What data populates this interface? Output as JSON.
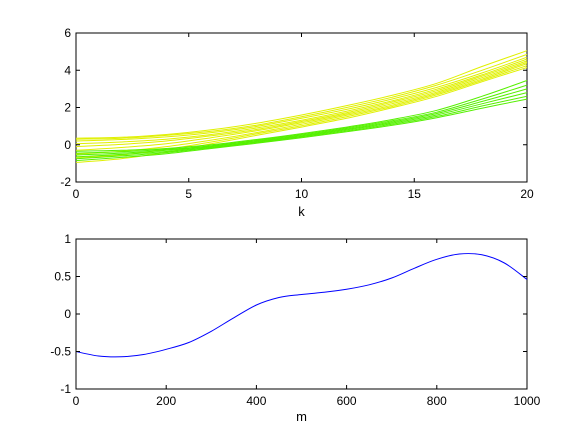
{
  "chart_data": [
    {
      "type": "line",
      "xlabel": "k",
      "ylabel": "",
      "xlim": [
        0,
        20
      ],
      "ylim": [
        -2,
        6
      ],
      "x_ticks": [
        "0",
        "5",
        "10",
        "15",
        "20"
      ],
      "y_ticks": [
        "-2",
        "0",
        "2",
        "4",
        "6"
      ],
      "x": [
        0,
        2,
        4,
        6,
        8,
        10,
        12,
        14,
        16,
        18,
        20
      ],
      "series": [
        {
          "group": "yellow",
          "color": "#e0f000",
          "values": [
            0.35,
            0.4,
            0.55,
            0.8,
            1.15,
            1.6,
            2.1,
            2.65,
            3.3,
            4.2,
            5.05
          ]
        },
        {
          "group": "yellow",
          "color": "#e0f000",
          "values": [
            0.3,
            0.35,
            0.5,
            0.72,
            1.05,
            1.5,
            2.0,
            2.55,
            3.2,
            4.0,
            4.85
          ]
        },
        {
          "group": "yellow",
          "color": "#e0f000",
          "values": [
            0.2,
            0.28,
            0.42,
            0.65,
            0.98,
            1.42,
            1.9,
            2.45,
            3.08,
            3.85,
            4.7
          ]
        },
        {
          "group": "yellow",
          "color": "#e0f000",
          "values": [
            0.05,
            0.15,
            0.3,
            0.55,
            0.9,
            1.32,
            1.8,
            2.35,
            2.98,
            3.75,
            4.6
          ]
        },
        {
          "group": "yellow",
          "color": "#e0f000",
          "values": [
            -0.1,
            0.02,
            0.2,
            0.48,
            0.82,
            1.25,
            1.72,
            2.28,
            2.9,
            3.68,
            4.5
          ]
        },
        {
          "group": "yellow",
          "color": "#e0f000",
          "values": [
            -0.3,
            -0.15,
            0.05,
            0.38,
            0.75,
            1.18,
            1.65,
            2.2,
            2.82,
            3.6,
            4.42
          ]
        },
        {
          "group": "yellow",
          "color": "#e0f000",
          "values": [
            -0.5,
            -0.35,
            -0.1,
            0.25,
            0.65,
            1.1,
            1.58,
            2.12,
            2.75,
            3.52,
            4.35
          ]
        },
        {
          "group": "yellow",
          "color": "#e0f000",
          "values": [
            -0.7,
            -0.55,
            -0.25,
            0.15,
            0.58,
            1.02,
            1.5,
            2.05,
            2.68,
            3.45,
            4.25
          ]
        },
        {
          "group": "yellow",
          "color": "#e0f000",
          "values": [
            -0.95,
            -0.75,
            -0.4,
            0.05,
            0.5,
            0.95,
            1.42,
            1.98,
            2.6,
            3.38,
            4.15
          ]
        },
        {
          "group": "green",
          "color": "#55f000",
          "values": [
            -0.35,
            -0.3,
            -0.2,
            0.0,
            0.28,
            0.6,
            0.95,
            1.35,
            1.85,
            2.6,
            3.45
          ]
        },
        {
          "group": "green",
          "color": "#55f000",
          "values": [
            -0.45,
            -0.38,
            -0.25,
            -0.05,
            0.24,
            0.55,
            0.9,
            1.28,
            1.75,
            2.45,
            3.2
          ]
        },
        {
          "group": "green",
          "color": "#55f000",
          "values": [
            -0.55,
            -0.45,
            -0.3,
            -0.08,
            0.2,
            0.5,
            0.85,
            1.22,
            1.68,
            2.32,
            3.0
          ]
        },
        {
          "group": "green",
          "color": "#55f000",
          "values": [
            -0.65,
            -0.52,
            -0.36,
            -0.12,
            0.16,
            0.46,
            0.8,
            1.16,
            1.6,
            2.2,
            2.8
          ]
        },
        {
          "group": "green",
          "color": "#55f000",
          "values": [
            -0.75,
            -0.6,
            -0.42,
            -0.16,
            0.12,
            0.42,
            0.75,
            1.1,
            1.52,
            2.08,
            2.6
          ]
        },
        {
          "group": "green",
          "color": "#55f000",
          "values": [
            -0.85,
            -0.68,
            -0.48,
            -0.2,
            0.08,
            0.38,
            0.7,
            1.04,
            1.45,
            1.96,
            2.45
          ]
        }
      ]
    },
    {
      "type": "line",
      "xlabel": "m",
      "ylabel": "",
      "xlim": [
        0,
        1000
      ],
      "ylim": [
        -1,
        1
      ],
      "x_ticks": [
        "0",
        "200",
        "400",
        "600",
        "800",
        "1000"
      ],
      "y_ticks": [
        "-1",
        "-0.5",
        "0",
        "0.5",
        "1"
      ],
      "x": [
        0,
        50,
        100,
        150,
        200,
        250,
        300,
        350,
        400,
        450,
        500,
        550,
        600,
        650,
        700,
        750,
        800,
        850,
        900,
        950,
        1000
      ],
      "series": [
        {
          "color": "#0000ff",
          "values": [
            -0.5,
            -0.56,
            -0.57,
            -0.54,
            -0.47,
            -0.38,
            -0.23,
            -0.05,
            0.12,
            0.22,
            0.26,
            0.29,
            0.33,
            0.39,
            0.48,
            0.61,
            0.73,
            0.8,
            0.79,
            0.68,
            0.46
          ]
        }
      ]
    }
  ]
}
